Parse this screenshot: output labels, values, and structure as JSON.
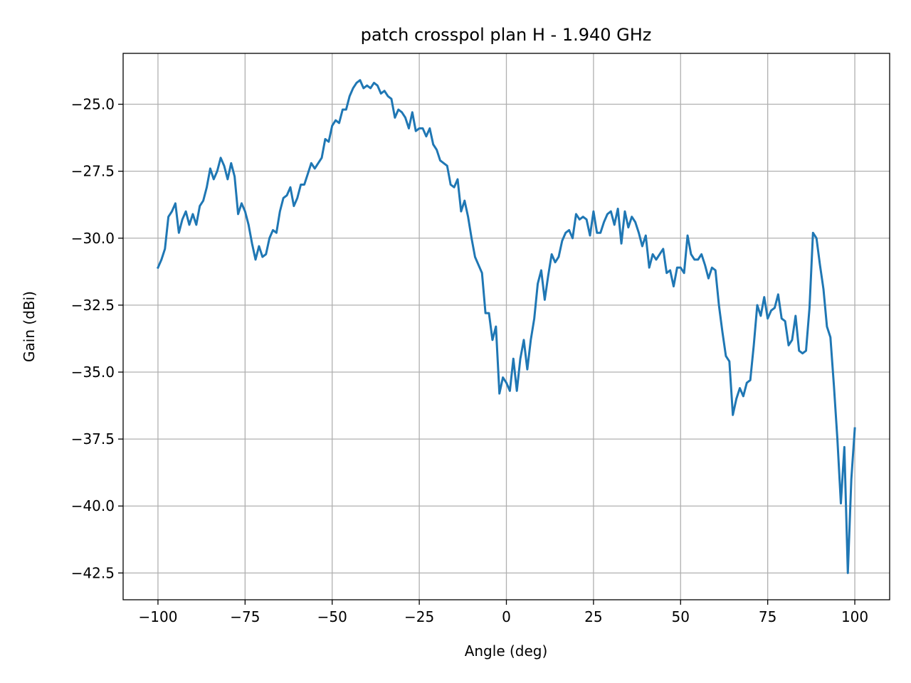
{
  "chart_data": {
    "type": "line",
    "title": "patch crosspol plan H - 1.940 GHz",
    "xlabel": "Angle (deg)",
    "ylabel": "Gain (dBi)",
    "xlim": [
      -110,
      110
    ],
    "ylim": [
      -43.5,
      -23.1
    ],
    "grid": true,
    "line_color": "#1f77b4",
    "xticks": [
      {
        "value": -100,
        "label": "−100"
      },
      {
        "value": -75,
        "label": "−75"
      },
      {
        "value": -50,
        "label": "−50"
      },
      {
        "value": -25,
        "label": "−25"
      },
      {
        "value": 0,
        "label": "0"
      },
      {
        "value": 25,
        "label": "25"
      },
      {
        "value": 50,
        "label": "50"
      },
      {
        "value": 75,
        "label": "75"
      },
      {
        "value": 100,
        "label": "100"
      }
    ],
    "yticks": [
      {
        "value": -25.0,
        "label": "−25.0"
      },
      {
        "value": -27.5,
        "label": "−27.5"
      },
      {
        "value": -30.0,
        "label": "−30.0"
      },
      {
        "value": -32.5,
        "label": "−32.5"
      },
      {
        "value": -35.0,
        "label": "−35.0"
      },
      {
        "value": -37.5,
        "label": "−37.5"
      },
      {
        "value": -40.0,
        "label": "−40.0"
      },
      {
        "value": -42.5,
        "label": "−42.5"
      }
    ],
    "series": [
      {
        "x": [
          -100,
          -99,
          -98,
          -97,
          -96,
          -95,
          -94,
          -93,
          -92,
          -91,
          -90,
          -89,
          -88,
          -87,
          -86,
          -85,
          -84,
          -83,
          -82,
          -81,
          -80,
          -79,
          -78,
          -77,
          -76,
          -75,
          -74,
          -73,
          -72,
          -71,
          -70,
          -69,
          -68,
          -67,
          -66,
          -65,
          -64,
          -63,
          -62,
          -61,
          -60,
          -59,
          -58,
          -57,
          -56,
          -55,
          -54,
          -53,
          -52,
          -51,
          -50,
          -49,
          -48,
          -47,
          -46,
          -45,
          -44,
          -43,
          -42,
          -41,
          -40,
          -39,
          -38,
          -37,
          -36,
          -35,
          -34,
          -33,
          -32,
          -31,
          -30,
          -29,
          -28,
          -27,
          -26,
          -25,
          -24,
          -23,
          -22,
          -21,
          -20,
          -19,
          -18,
          -17,
          -16,
          -15,
          -14,
          -13,
          -12,
          -11,
          -10,
          -9,
          -8,
          -7,
          -6,
          -5,
          -4,
          -3,
          -2,
          -1,
          0,
          1,
          2,
          3,
          4,
          5,
          6,
          7,
          8,
          9,
          10,
          11,
          12,
          13,
          14,
          15,
          16,
          17,
          18,
          19,
          20,
          21,
          22,
          23,
          24,
          25,
          26,
          27,
          28,
          29,
          30,
          31,
          32,
          33,
          34,
          35,
          36,
          37,
          38,
          39,
          40,
          41,
          42,
          43,
          44,
          45,
          46,
          47,
          48,
          49,
          50,
          51,
          52,
          53,
          54,
          55,
          56,
          57,
          58,
          59,
          60,
          61,
          62,
          63,
          64,
          65,
          66,
          67,
          68,
          69,
          70,
          71,
          72,
          73,
          74,
          75,
          76,
          77,
          78,
          79,
          80,
          81,
          82,
          83,
          84,
          85,
          86,
          87,
          88,
          89,
          90,
          91,
          92,
          93,
          94,
          95,
          96,
          97,
          98,
          99,
          100
        ],
        "y": [
          -31.1,
          -30.8,
          -30.4,
          -29.2,
          -29.0,
          -28.7,
          -29.8,
          -29.3,
          -29.0,
          -29.5,
          -29.1,
          -29.5,
          -28.8,
          -28.6,
          -28.1,
          -27.4,
          -27.8,
          -27.5,
          -27.0,
          -27.3,
          -27.8,
          -27.2,
          -27.7,
          -29.1,
          -28.7,
          -29.0,
          -29.5,
          -30.2,
          -30.8,
          -30.3,
          -30.7,
          -30.6,
          -30.0,
          -29.7,
          -29.8,
          -29.0,
          -28.5,
          -28.4,
          -28.1,
          -28.8,
          -28.5,
          -28.0,
          -28.0,
          -27.6,
          -27.2,
          -27.4,
          -27.2,
          -27.0,
          -26.3,
          -26.4,
          -25.8,
          -25.6,
          -25.7,
          -25.2,
          -25.2,
          -24.7,
          -24.4,
          -24.2,
          -24.1,
          -24.4,
          -24.3,
          -24.4,
          -24.2,
          -24.3,
          -24.6,
          -24.5,
          -24.7,
          -24.8,
          -25.5,
          -25.2,
          -25.3,
          -25.5,
          -25.9,
          -25.3,
          -26.0,
          -25.9,
          -25.9,
          -26.2,
          -25.9,
          -26.5,
          -26.7,
          -27.1,
          -27.2,
          -27.3,
          -28.0,
          -28.1,
          -27.8,
          -29.0,
          -28.6,
          -29.2,
          -30.0,
          -30.7,
          -31.0,
          -31.3,
          -32.8,
          -32.8,
          -33.8,
          -33.3,
          -35.8,
          -35.2,
          -35.4,
          -35.7,
          -34.5,
          -35.7,
          -34.5,
          -33.8,
          -34.9,
          -33.8,
          -33.0,
          -31.7,
          -31.2,
          -32.3,
          -31.4,
          -30.6,
          -30.9,
          -30.7,
          -30.1,
          -29.8,
          -29.7,
          -30.0,
          -29.1,
          -29.3,
          -29.2,
          -29.3,
          -29.9,
          -29.0,
          -29.8,
          -29.8,
          -29.4,
          -29.1,
          -29.0,
          -29.5,
          -28.9,
          -30.2,
          -29.0,
          -29.6,
          -29.2,
          -29.4,
          -29.8,
          -30.3,
          -29.9,
          -31.1,
          -30.6,
          -30.8,
          -30.6,
          -30.4,
          -31.3,
          -31.2,
          -31.8,
          -31.1,
          -31.1,
          -31.3,
          -29.9,
          -30.6,
          -30.8,
          -30.8,
          -30.6,
          -31.0,
          -31.5,
          -31.1,
          -31.2,
          -32.5,
          -33.5,
          -34.4,
          -34.6,
          -36.6,
          -36.0,
          -35.6,
          -35.9,
          -35.4,
          -35.3,
          -34.0,
          -32.5,
          -32.9,
          -32.2,
          -33.0,
          -32.7,
          -32.6,
          -32.1,
          -33.0,
          -33.1,
          -34.0,
          -33.8,
          -32.9,
          -34.2,
          -34.3,
          -34.2,
          -32.6,
          -29.8,
          -30.0,
          -31.0,
          -31.9,
          -33.3,
          -33.7,
          -35.5,
          -37.5,
          -39.9,
          -37.8,
          -42.5,
          -39.0,
          -37.1
        ]
      }
    ]
  }
}
